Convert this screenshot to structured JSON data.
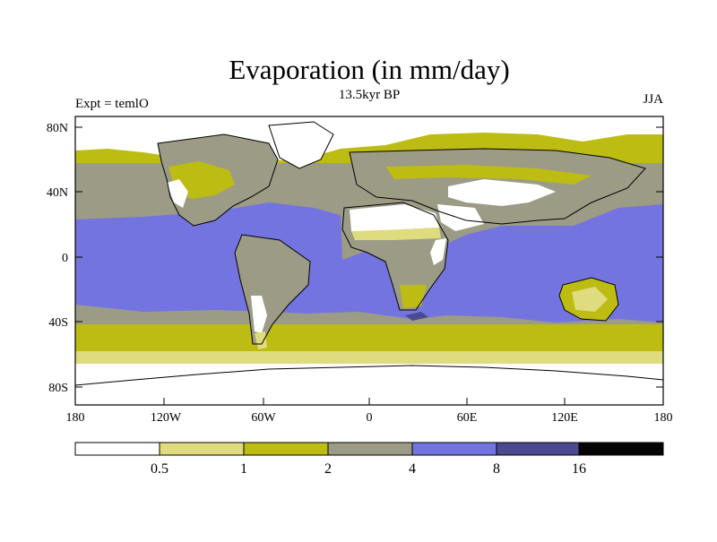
{
  "title": "Evaporation (in mm/day)",
  "subtitle": "13.5kyr BP",
  "left_label": "Expt = temlO",
  "right_label": "JJA",
  "lat_labels": [
    "80N",
    "40N",
    "0",
    "40S",
    "80S"
  ],
  "lon_labels": [
    "180",
    "120W",
    "60W",
    "0",
    "60E",
    "120E",
    "180"
  ],
  "colorbar": {
    "colors": [
      "#ffffff",
      "#dedc7e",
      "#bdbc13",
      "#9b9b86",
      "#7474e0",
      "#4a4a90",
      "#050505"
    ],
    "labels": [
      "0.5",
      "1",
      "2",
      "4",
      "8",
      "16"
    ]
  }
}
